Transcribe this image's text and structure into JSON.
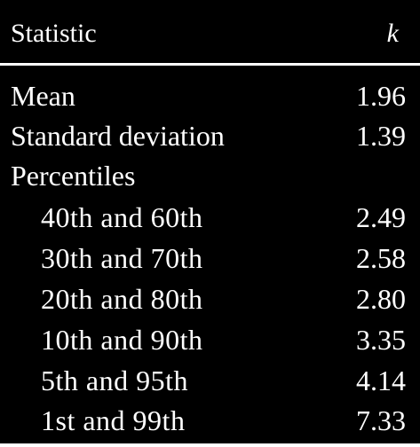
{
  "header": {
    "statistic_label": "Statistic",
    "k_label": "k"
  },
  "rows": [
    {
      "label": "Mean",
      "value": "1.96"
    },
    {
      "label": "Standard deviation",
      "value": "1.39"
    },
    {
      "label": "Percentiles",
      "value": ""
    },
    {
      "label": "40th and 60th",
      "value": "2.49"
    },
    {
      "label": "30th and 70th",
      "value": "2.58"
    },
    {
      "label": "20th and 80th",
      "value": "2.80"
    },
    {
      "label": "10th and 90th",
      "value": "3.35"
    },
    {
      "label": "5th and 95th",
      "value": "4.14"
    },
    {
      "label": "1st and 99th",
      "value": "7.33"
    }
  ],
  "colors": {
    "background": "#000000",
    "text": "#ffffff"
  }
}
